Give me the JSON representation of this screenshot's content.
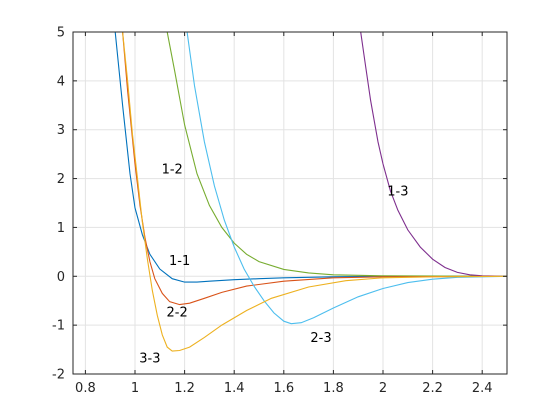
{
  "chart_data": {
    "type": "line",
    "title": "",
    "xlabel": "",
    "ylabel": "",
    "xlim": [
      0.75,
      2.5
    ],
    "ylim": [
      -2,
      5
    ],
    "grid": true,
    "x_ticks": [
      0.8,
      1,
      1.2,
      1.4,
      1.6,
      1.8,
      2,
      2.2,
      2.4
    ],
    "x_tick_labels": [
      "0.8",
      "1",
      "1.2",
      "1.4",
      "1.6",
      "1.8",
      "2",
      "2.2",
      "2.4"
    ],
    "y_ticks": [
      -2,
      -1,
      0,
      1,
      2,
      3,
      4,
      5
    ],
    "y_tick_labels": [
      "-2",
      "-1",
      "0",
      "1",
      "2",
      "3",
      "4",
      "5"
    ],
    "series": [
      {
        "label": "1-1",
        "color": "#0072bd",
        "points": [
          [
            0.92,
            5.0
          ],
          [
            0.95,
            3.5
          ],
          [
            0.98,
            2.1
          ],
          [
            1.0,
            1.4
          ],
          [
            1.03,
            0.85
          ],
          [
            1.06,
            0.45
          ],
          [
            1.1,
            0.15
          ],
          [
            1.15,
            -0.05
          ],
          [
            1.2,
            -0.12
          ],
          [
            1.25,
            -0.12
          ],
          [
            1.3,
            -0.1
          ],
          [
            1.4,
            -0.07
          ],
          [
            1.5,
            -0.05
          ],
          [
            1.6,
            -0.03
          ],
          [
            1.8,
            -0.01
          ],
          [
            2.0,
            0.0
          ],
          [
            2.5,
            0.0
          ]
        ],
        "label_pos": [
          1.18,
          0.32
        ]
      },
      {
        "label": "1-2",
        "color": "#77ac30",
        "points": [
          [
            1.13,
            5.0
          ],
          [
            1.16,
            4.2
          ],
          [
            1.2,
            3.1
          ],
          [
            1.25,
            2.1
          ],
          [
            1.3,
            1.45
          ],
          [
            1.35,
            1.0
          ],
          [
            1.4,
            0.68
          ],
          [
            1.45,
            0.45
          ],
          [
            1.5,
            0.3
          ],
          [
            1.6,
            0.14
          ],
          [
            1.7,
            0.07
          ],
          [
            1.8,
            0.03
          ],
          [
            2.0,
            0.01
          ],
          [
            2.5,
            0.0
          ]
        ],
        "label_pos": [
          1.15,
          2.2
        ]
      },
      {
        "label": "1-3",
        "color": "#7e2f8e",
        "points": [
          [
            1.91,
            5.0
          ],
          [
            1.93,
            4.3
          ],
          [
            1.95,
            3.6
          ],
          [
            1.98,
            2.75
          ],
          [
            2.0,
            2.3
          ],
          [
            2.03,
            1.75
          ],
          [
            2.06,
            1.35
          ],
          [
            2.1,
            0.95
          ],
          [
            2.15,
            0.6
          ],
          [
            2.2,
            0.35
          ],
          [
            2.25,
            0.18
          ],
          [
            2.3,
            0.08
          ],
          [
            2.35,
            0.03
          ],
          [
            2.4,
            0.01
          ],
          [
            2.5,
            0.0
          ]
        ],
        "label_pos": [
          2.06,
          1.75
        ]
      },
      {
        "label": "2-2",
        "color": "#d95319",
        "points": [
          [
            0.95,
            5.0
          ],
          [
            0.97,
            3.8
          ],
          [
            1.0,
            2.3
          ],
          [
            1.02,
            1.45
          ],
          [
            1.04,
            0.8
          ],
          [
            1.06,
            0.3
          ],
          [
            1.08,
            -0.05
          ],
          [
            1.11,
            -0.35
          ],
          [
            1.14,
            -0.52
          ],
          [
            1.18,
            -0.58
          ],
          [
            1.22,
            -0.55
          ],
          [
            1.28,
            -0.45
          ],
          [
            1.35,
            -0.33
          ],
          [
            1.45,
            -0.2
          ],
          [
            1.6,
            -0.1
          ],
          [
            1.8,
            -0.03
          ],
          [
            2.0,
            -0.01
          ],
          [
            2.5,
            0.0
          ]
        ],
        "label_pos": [
          1.17,
          -0.73
        ]
      },
      {
        "label": "2-3",
        "color": "#4dbeee",
        "points": [
          [
            1.21,
            5.0
          ],
          [
            1.24,
            3.9
          ],
          [
            1.28,
            2.75
          ],
          [
            1.32,
            1.85
          ],
          [
            1.36,
            1.15
          ],
          [
            1.4,
            0.6
          ],
          [
            1.44,
            0.15
          ],
          [
            1.48,
            -0.2
          ],
          [
            1.52,
            -0.5
          ],
          [
            1.56,
            -0.75
          ],
          [
            1.6,
            -0.92
          ],
          [
            1.63,
            -0.97
          ],
          [
            1.67,
            -0.95
          ],
          [
            1.72,
            -0.85
          ],
          [
            1.8,
            -0.65
          ],
          [
            1.9,
            -0.42
          ],
          [
            2.0,
            -0.25
          ],
          [
            2.1,
            -0.13
          ],
          [
            2.2,
            -0.06
          ],
          [
            2.3,
            -0.02
          ],
          [
            2.5,
            0.0
          ]
        ],
        "label_pos": [
          1.75,
          -1.25
        ]
      },
      {
        "label": "3-3",
        "color": "#edb120",
        "points": [
          [
            0.95,
            5.0
          ],
          [
            0.97,
            4.0
          ],
          [
            0.99,
            2.9
          ],
          [
            1.01,
            2.0
          ],
          [
            1.03,
            1.1
          ],
          [
            1.05,
            0.35
          ],
          [
            1.07,
            -0.3
          ],
          [
            1.09,
            -0.8
          ],
          [
            1.11,
            -1.2
          ],
          [
            1.13,
            -1.45
          ],
          [
            1.15,
            -1.53
          ],
          [
            1.18,
            -1.52
          ],
          [
            1.22,
            -1.45
          ],
          [
            1.28,
            -1.25
          ],
          [
            1.35,
            -1.0
          ],
          [
            1.45,
            -0.7
          ],
          [
            1.55,
            -0.45
          ],
          [
            1.7,
            -0.22
          ],
          [
            1.85,
            -0.09
          ],
          [
            2.0,
            -0.03
          ],
          [
            2.2,
            -0.01
          ],
          [
            2.5,
            0.0
          ]
        ],
        "label_pos": [
          1.06,
          -1.67
        ]
      }
    ]
  }
}
